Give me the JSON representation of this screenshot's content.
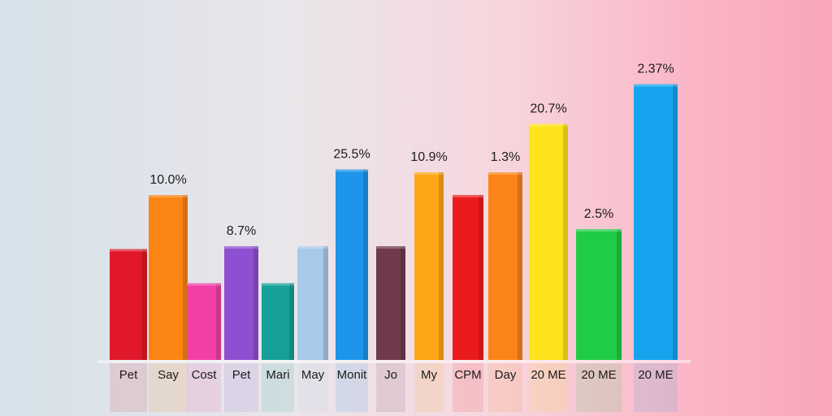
{
  "chart_data": {
    "type": "bar",
    "categories": [
      "Pet",
      "Say",
      "Cost",
      "Pet",
      "Mari",
      "May",
      "Monit",
      "Jo",
      "My",
      "CPM",
      "Day",
      "20 ME",
      "20 ME",
      "20 ME"
    ],
    "values": [
      39,
      58,
      27,
      40,
      27,
      40,
      67,
      40,
      66,
      58,
      66,
      83,
      46,
      97
    ],
    "bar_labels": [
      null,
      "10.0%",
      null,
      "8.7%",
      null,
      null,
      "25.5%",
      null,
      "10.9%",
      null,
      "1.3%",
      "20.7%",
      "2.5%",
      "2.37%"
    ],
    "colors": [
      "#e0182a",
      "#fb8412",
      "#f23fa6",
      "#8e4fd0",
      "#17a09a",
      "#a9c9ea",
      "#1c95ea",
      "#6e3a4c",
      "#fda616",
      "#ec1b1b",
      "#fb8418",
      "#fee21a",
      "#1fcc45",
      "#17a4ee"
    ],
    "ylim": [
      0,
      100
    ]
  }
}
